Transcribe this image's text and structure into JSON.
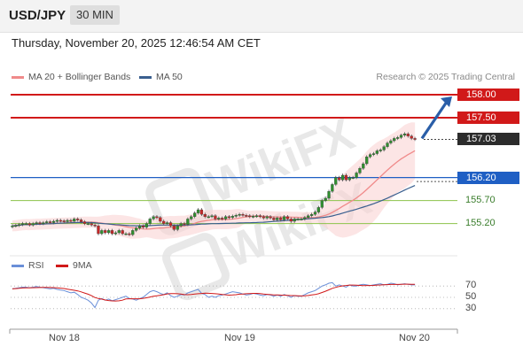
{
  "header": {
    "symbol": "USD/JPY",
    "interval": "30 MIN",
    "datetime": "Thursday, November 20, 2025 12:46:54 AM CET"
  },
  "legend": {
    "ma20_label": "MA 20 + Bollinger Bands",
    "ma50_label": "MA 50",
    "credit": "Research © 2025 Trading Central",
    "rsi_label": "RSI",
    "rsi_ma_label": "9MA"
  },
  "colors": {
    "ma20": "#f08a8a",
    "ma50": "#3a5f8f",
    "resistance": "#d11919",
    "support": "#1f5fc4",
    "secondary_support": "#3a7d2c",
    "bullish": "#2f8f2f",
    "bearish": "#c62828",
    "arrow": "#2a5ea8"
  },
  "chart_data": [
    {
      "type": "candlestick",
      "x_ticks": [
        "Nov 18",
        "Nov 19",
        "Nov 20"
      ],
      "y_range": [
        154.75,
        158.25
      ],
      "levels": [
        {
          "label": "158.00",
          "value": 158.0,
          "kind": "resistance"
        },
        {
          "label": "157.50",
          "value": 157.5,
          "kind": "resistance"
        },
        {
          "label": "157.03",
          "value": 157.03,
          "kind": "current"
        },
        {
          "label": "156.20",
          "value": 156.2,
          "kind": "pivot"
        },
        {
          "label": "155.70",
          "value": 155.7,
          "kind": "support"
        },
        {
          "label": "155.20",
          "value": 155.2,
          "kind": "support"
        }
      ],
      "target": 158.0,
      "close_series": [
        155.15,
        155.16,
        155.18,
        155.2,
        155.2,
        155.17,
        155.2,
        155.22,
        155.2,
        155.22,
        155.24,
        155.22,
        155.25,
        155.27,
        155.26,
        155.24,
        155.27,
        155.25,
        155.3,
        155.28,
        155.24,
        155.2,
        155.2,
        155.17,
        155.15,
        154.98,
        155.05,
        155.0,
        155.05,
        154.98,
        155.0,
        155.05,
        154.98,
        154.98,
        154.96,
        155.05,
        155.1,
        155.15,
        155.12,
        155.2,
        155.3,
        155.35,
        155.33,
        155.25,
        155.2,
        155.22,
        155.15,
        155.07,
        155.15,
        155.2,
        155.18,
        155.3,
        155.35,
        155.43,
        155.5,
        155.4,
        155.35,
        155.35,
        155.37,
        155.3,
        155.32,
        155.3,
        155.35,
        155.33,
        155.36,
        155.38,
        155.4,
        155.38,
        155.37,
        155.35,
        155.36,
        155.37,
        155.35,
        155.32,
        155.35,
        155.32,
        155.28,
        155.32,
        155.28,
        155.35,
        155.3,
        155.25,
        155.3,
        155.3,
        155.3,
        155.33,
        155.37,
        155.4,
        155.45,
        155.55,
        155.7,
        155.75,
        155.9,
        156.05,
        156.2,
        156.15,
        156.25,
        156.15,
        156.2,
        156.2,
        156.3,
        156.4,
        156.5,
        156.65,
        156.7,
        156.72,
        156.78,
        156.8,
        156.87,
        156.95,
        157.0,
        157.05,
        157.07,
        157.12,
        157.15,
        157.1,
        157.05,
        157.03
      ]
    },
    {
      "type": "line",
      "name": "RSI",
      "levels": [
        70,
        50,
        30
      ],
      "values": [
        65,
        66,
        67,
        68,
        68,
        67,
        68,
        69,
        68,
        67,
        66,
        65,
        66,
        64,
        63,
        62,
        60,
        58,
        59,
        55,
        50,
        48,
        45,
        40,
        32,
        45,
        48,
        45,
        47,
        44,
        46,
        48,
        50,
        52,
        48,
        47,
        45,
        48,
        50,
        55,
        60,
        62,
        60,
        57,
        55,
        58,
        53,
        50,
        52,
        55,
        54,
        58,
        60,
        62,
        64,
        57,
        55,
        50,
        52,
        50,
        53,
        54,
        56,
        58,
        60,
        59,
        58,
        56,
        54,
        55,
        57,
        56,
        54,
        53,
        55,
        54,
        52,
        54,
        52,
        55,
        53,
        50,
        53,
        52,
        52,
        55,
        58,
        60,
        62,
        66,
        70,
        72,
        75,
        76,
        70,
        72,
        70,
        68,
        72,
        70,
        70,
        72,
        73,
        72,
        71,
        72,
        73,
        74,
        72,
        73,
        75,
        74,
        72,
        73,
        74,
        73,
        72,
        72
      ]
    }
  ]
}
